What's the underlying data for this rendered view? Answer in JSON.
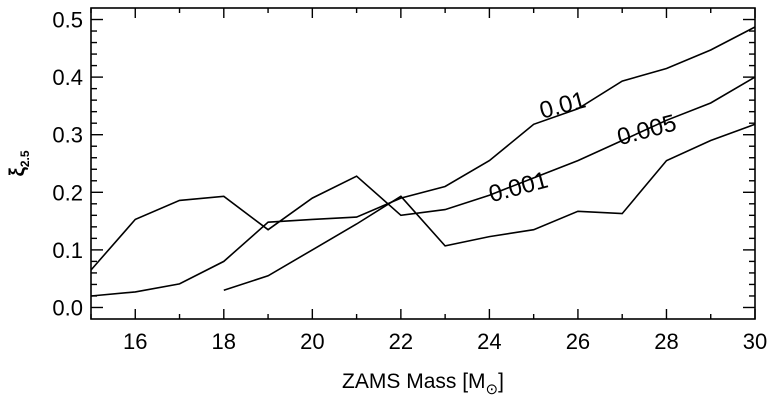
{
  "chart_data": {
    "type": "line",
    "title": "",
    "xlabel": "ZAMS Mass [M",
    "xlabel_symbol": "⊙",
    "xlabel_close": "]",
    "ylabel": "ξ",
    "ylabel_sub": "2.5",
    "xlim": [
      15,
      30
    ],
    "ylim": [
      -0.02,
      0.52
    ],
    "x_ticks": [
      16,
      18,
      20,
      22,
      24,
      26,
      28,
      30
    ],
    "x_tick_labels": [
      "16",
      "18",
      "20",
      "22",
      "24",
      "26",
      "28",
      "30"
    ],
    "y_ticks": [
      0.0,
      0.1,
      0.2,
      0.3,
      0.4,
      0.5
    ],
    "y_tick_labels": [
      "0.0",
      "0.1",
      "0.2",
      "0.3",
      "0.4",
      "0.5"
    ],
    "grid": false,
    "legend": "none",
    "series": [
      {
        "label": "0.01",
        "x": [
          15,
          16,
          17,
          18,
          19,
          20,
          21,
          22,
          23,
          24,
          25,
          26,
          27,
          28,
          29,
          30
        ],
        "y": [
          0.02,
          0.027,
          0.041,
          0.08,
          0.148,
          0.153,
          0.157,
          0.19,
          0.21,
          0.255,
          0.318,
          0.345,
          0.393,
          0.415,
          0.447,
          0.487
        ],
        "label_at": [
          25.7,
          0.338
        ]
      },
      {
        "label": "0.005",
        "x": [
          15,
          16,
          17,
          18,
          19,
          20,
          21,
          22,
          23,
          24,
          25,
          26,
          27,
          28,
          29,
          30
        ],
        "y": [
          0.065,
          0.153,
          0.186,
          0.193,
          0.135,
          0.19,
          0.228,
          0.16,
          0.17,
          0.195,
          0.225,
          0.255,
          0.29,
          0.325,
          0.355,
          0.4
        ],
        "label_at": [
          27.6,
          0.295
        ]
      },
      {
        "label": "0.001",
        "x": [
          18,
          19,
          20,
          21,
          22,
          23,
          24,
          25,
          26,
          27,
          28,
          29,
          30
        ],
        "y": [
          0.03,
          0.055,
          0.1,
          0.145,
          0.193,
          0.107,
          0.123,
          0.135,
          0.167,
          0.163,
          0.255,
          0.29,
          0.318
        ],
        "label_at": [
          24.7,
          0.196
        ]
      }
    ]
  }
}
